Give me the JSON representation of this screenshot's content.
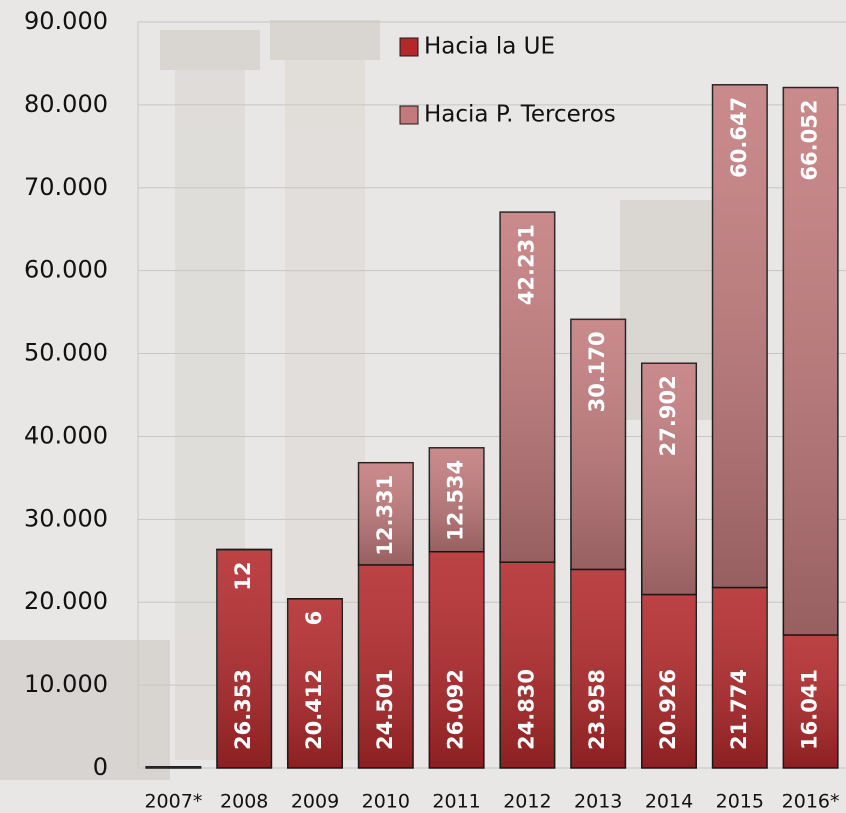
{
  "chart_data": {
    "type": "stacked-bar",
    "categories": [
      "2007*",
      "2008",
      "2009",
      "2010",
      "2011",
      "2012",
      "2013",
      "2014",
      "2015",
      "2016*"
    ],
    "series": [
      {
        "name": "Hacia la UE",
        "color": "#b3282a",
        "values": [
          150,
          26353,
          20412,
          24501,
          26092,
          24830,
          23958,
          20926,
          21774,
          16041
        ],
        "value_labels": [
          null,
          "26.353",
          "20.412",
          "24.501",
          "26.092",
          "24.830",
          "23.958",
          "20.926",
          "21.774",
          "16.041"
        ]
      },
      {
        "name": "Hacia P. Terceros",
        "color": "#c27a7c",
        "values": [
          0,
          12,
          6,
          12331,
          12534,
          42231,
          30170,
          27902,
          60647,
          66052
        ],
        "value_labels": [
          null,
          "12",
          "6",
          "12.331",
          "12.534",
          "42.231",
          "30.170",
          "27.902",
          "60.647",
          "66.052"
        ]
      }
    ],
    "ylim": [
      0,
      90000
    ],
    "yticks": [
      {
        "value": 0,
        "label": "0"
      },
      {
        "value": 10000,
        "label": "10.000"
      },
      {
        "value": 20000,
        "label": "20.000"
      },
      {
        "value": 30000,
        "label": "30.000"
      },
      {
        "value": 40000,
        "label": "40.000"
      },
      {
        "value": 50000,
        "label": "50.000"
      },
      {
        "value": 60000,
        "label": "60.000"
      },
      {
        "value": 70000,
        "label": "70.000"
      },
      {
        "value": 80000,
        "label": "80.000"
      },
      {
        "value": 90000,
        "label": "90.000"
      }
    ],
    "grid": true,
    "legend": "top"
  }
}
